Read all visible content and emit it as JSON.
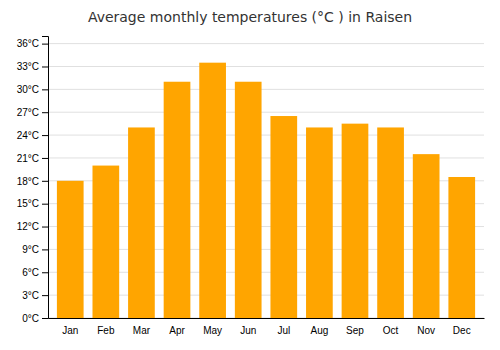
{
  "chart_data": {
    "type": "bar",
    "title": "Average monthly temperatures (°C ) in Raisen",
    "categories": [
      "Jan",
      "Feb",
      "Mar",
      "Apr",
      "May",
      "Jun",
      "Jul",
      "Aug",
      "Sep",
      "Oct",
      "Nov",
      "Dec"
    ],
    "values": [
      18,
      20,
      25,
      31,
      33.5,
      31,
      26.5,
      25,
      25.5,
      25,
      21.5,
      18.5
    ],
    "color": "#FFA500",
    "ylim": [
      0,
      37
    ],
    "yticks": [
      {
        "value": 0,
        "label": "0°C"
      },
      {
        "value": 3,
        "label": "3°C"
      },
      {
        "value": 6,
        "label": "6°C"
      },
      {
        "value": 9,
        "label": "9°C"
      },
      {
        "value": 12,
        "label": "12°C"
      },
      {
        "value": 15,
        "label": "15°C"
      },
      {
        "value": 18,
        "label": "18°C"
      },
      {
        "value": 21,
        "label": "21°C"
      },
      {
        "value": 24,
        "label": "24°C"
      },
      {
        "value": 27,
        "label": "27°C"
      },
      {
        "value": 30,
        "label": "30°C"
      },
      {
        "value": 33,
        "label": "33°C"
      },
      {
        "value": 36,
        "label": "36°C"
      }
    ],
    "grid": true
  }
}
